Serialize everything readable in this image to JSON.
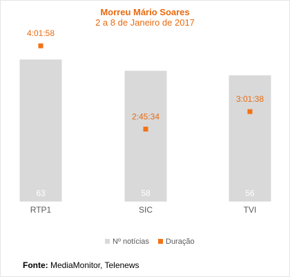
{
  "chart_data": {
    "type": "bar",
    "title": "Morreu Mário Soares",
    "subtitle": "2 a 8 de Janeiro de 2017",
    "categories": [
      "RTP1",
      "SIC",
      "TVI"
    ],
    "series": [
      {
        "name": "Nº notícias",
        "type": "bar",
        "color": "#d9d9d9",
        "values": [
          63,
          58,
          56
        ]
      },
      {
        "name": "Duração",
        "type": "marker",
        "color": "#f47216",
        "values": [
          "4:01:58",
          "2:45:34",
          "3:01:38"
        ]
      }
    ],
    "grid": false,
    "legend_position": "bottom"
  },
  "source": {
    "label": "Fonte:",
    "text": "MediaMonitor, Telenews"
  }
}
